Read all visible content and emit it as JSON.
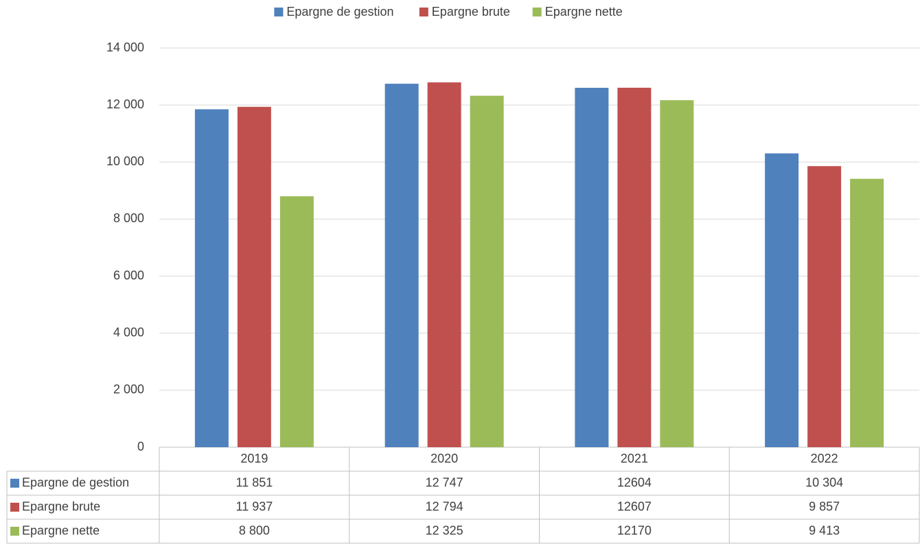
{
  "chart_data": {
    "type": "bar",
    "categories": [
      "2019",
      "2020",
      "2021",
      "2022"
    ],
    "series": [
      {
        "name": "Epargne de gestion",
        "color": "#4f81bd",
        "values": [
          11851,
          12747,
          12604,
          10304
        ],
        "value_labels": [
          "11 851",
          "12 747",
          "12604",
          "10 304"
        ]
      },
      {
        "name": "Epargne brute",
        "color": "#c0504d",
        "values": [
          11937,
          12794,
          12607,
          9857
        ],
        "value_labels": [
          "11 937",
          "12 794",
          "12607",
          "9 857"
        ]
      },
      {
        "name": "Epargne nette",
        "color": "#9bbb59",
        "values": [
          8800,
          12325,
          12170,
          9413
        ],
        "value_labels": [
          "8 800",
          "12 325",
          "12170",
          "9 413"
        ]
      }
    ],
    "ylim": [
      0,
      14000
    ],
    "yticks": [
      0,
      {
        "value": 2000,
        "label": "2 000"
      },
      {
        "value": 4000,
        "label": "4 000"
      },
      {
        "value": 6000,
        "label": "6 000"
      },
      {
        "value": 8000,
        "label": "8 000"
      },
      {
        "value": 10000,
        "label": "10 000"
      },
      {
        "value": 12000,
        "label": "12 000"
      },
      {
        "value": 14000,
        "label": "14 000"
      }
    ],
    "grid": true,
    "legend": "top"
  }
}
